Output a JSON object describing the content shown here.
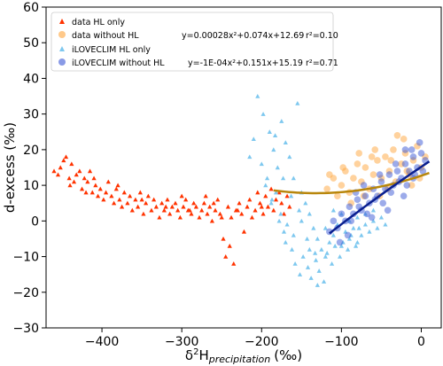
{
  "chart_data": {
    "type": "scatter",
    "xlabel_main": "δ",
    "xlabel_sup": "2",
    "xlabel_h": "H",
    "xlabel_sub": "precipitation",
    "xlabel_unit": "(‰)",
    "ylabel": "d-excess  (‰)",
    "xlim": [
      -470,
      25
    ],
    "ylim": [
      -30,
      60
    ],
    "xticks": [
      -400,
      -300,
      -200,
      -100,
      0
    ],
    "xtick_labels": [
      "−400",
      "−300",
      "−200",
      "−100",
      "0"
    ],
    "yticks": [
      -30,
      -20,
      -10,
      0,
      10,
      20,
      30,
      40,
      50,
      60
    ],
    "ytick_labels": [
      "−30",
      "−20",
      "−10",
      "0",
      "10",
      "20",
      "30",
      "40",
      "50",
      "60"
    ],
    "legend": {
      "placement": "top-center",
      "entries": [
        {
          "label": "data HL only",
          "marker": "triangle",
          "color": "#ff3300"
        },
        {
          "label": "data without HL",
          "marker": "circle",
          "color": "#ffa53c",
          "equation": "y=0.00028x²+0.074x+12.69",
          "r2": "r²=0.10"
        },
        {
          "label": "iLOVECLIM HL only",
          "marker": "triangle",
          "color": "#7ec8ef"
        },
        {
          "label": "iLOVECLIM without HL",
          "marker": "circle",
          "color": "#3a57d6",
          "equation": "y=-1E-04x²+0.151x+15.19",
          "r2": "r²=0.71"
        }
      ]
    },
    "series": [
      {
        "name": "data HL only",
        "color": "#ff3300",
        "marker": "triangle",
        "points": [
          [
            -460,
            14
          ],
          [
            -455,
            13
          ],
          [
            -452,
            15
          ],
          [
            -448,
            17
          ],
          [
            -445,
            18
          ],
          [
            -441,
            12
          ],
          [
            -438,
            16
          ],
          [
            -435,
            11
          ],
          [
            -432,
            13
          ],
          [
            -428,
            14
          ],
          [
            -425,
            9
          ],
          [
            -422,
            12
          ],
          [
            -418,
            11
          ],
          [
            -415,
            14
          ],
          [
            -412,
            8
          ],
          [
            -408,
            10
          ],
          [
            -405,
            7
          ],
          [
            -402,
            9
          ],
          [
            -398,
            6
          ],
          [
            -395,
            8
          ],
          [
            -392,
            11
          ],
          [
            -388,
            7
          ],
          [
            -385,
            5
          ],
          [
            -382,
            9
          ],
          [
            -378,
            6
          ],
          [
            -375,
            4
          ],
          [
            -372,
            8
          ],
          [
            -368,
            5
          ],
          [
            -365,
            7
          ],
          [
            -362,
            3
          ],
          [
            -358,
            6
          ],
          [
            -355,
            4
          ],
          [
            -352,
            8
          ],
          [
            -348,
            2
          ],
          [
            -345,
            5
          ],
          [
            -342,
            7
          ],
          [
            -338,
            3
          ],
          [
            -335,
            6
          ],
          [
            -332,
            4
          ],
          [
            -328,
            1
          ],
          [
            -325,
            5
          ],
          [
            -322,
            3
          ],
          [
            -318,
            6
          ],
          [
            -315,
            2
          ],
          [
            -312,
            4
          ],
          [
            -308,
            5
          ],
          [
            -305,
            3
          ],
          [
            -302,
            1
          ],
          [
            -298,
            4
          ],
          [
            -295,
            6
          ],
          [
            -292,
            3
          ],
          [
            -288,
            2
          ],
          [
            -285,
            5
          ],
          [
            -282,
            4
          ],
          [
            -278,
            1
          ],
          [
            -275,
            3
          ],
          [
            -272,
            5
          ],
          [
            -268,
            2
          ],
          [
            -265,
            4
          ],
          [
            -262,
            0
          ],
          [
            -258,
            3
          ],
          [
            -255,
            6
          ],
          [
            -252,
            2
          ],
          [
            -248,
            -5
          ],
          [
            -245,
            -10
          ],
          [
            -242,
            4
          ],
          [
            -238,
            1
          ],
          [
            -235,
            -12
          ],
          [
            -232,
            3
          ],
          [
            -228,
            5
          ],
          [
            -225,
            2
          ],
          [
            -222,
            -3
          ],
          [
            -218,
            4
          ],
          [
            -215,
            6
          ],
          [
            -212,
            1
          ],
          [
            -208,
            3
          ],
          [
            -205,
            8
          ],
          [
            -202,
            5
          ],
          [
            -198,
            2
          ],
          [
            -195,
            7
          ],
          [
            -192,
            4
          ],
          [
            -188,
            9
          ],
          [
            -185,
            3
          ],
          [
            -182,
            6
          ],
          [
            -178,
            8
          ],
          [
            -175,
            5
          ],
          [
            -172,
            2
          ],
          [
            -168,
            7
          ],
          [
            -165,
            4
          ],
          [
            -410,
            12
          ],
          [
            -380,
            10
          ],
          [
            -350,
            6
          ],
          [
            -320,
            4
          ],
          [
            -290,
            3
          ],
          [
            -260,
            5
          ],
          [
            -230,
            3
          ],
          [
            -200,
            4
          ],
          [
            -440,
            10
          ],
          [
            -420,
            8
          ],
          [
            -300,
            7
          ],
          [
            -270,
            7
          ],
          [
            -250,
            1
          ],
          [
            -240,
            -7
          ]
        ]
      },
      {
        "name": "iLOVECLIM HL only",
        "color": "#7ec8ef",
        "marker": "triangle",
        "points": [
          [
            -205,
            35
          ],
          [
            -198,
            30
          ],
          [
            -190,
            25
          ],
          [
            -185,
            20
          ],
          [
            -180,
            15
          ],
          [
            -175,
            28
          ],
          [
            -170,
            22
          ],
          [
            -165,
            18
          ],
          [
            -160,
            12
          ],
          [
            -155,
            33
          ],
          [
            -150,
            8
          ],
          [
            -145,
            5
          ],
          [
            -140,
            2
          ],
          [
            -135,
            -2
          ],
          [
            -130,
            -5
          ],
          [
            -125,
            -8
          ],
          [
            -120,
            -10
          ],
          [
            -115,
            -6
          ],
          [
            -110,
            -4
          ],
          [
            -105,
            -1
          ],
          [
            -100,
            -7
          ],
          [
            -95,
            -3
          ],
          [
            -90,
            -5
          ],
          [
            -85,
            -2
          ],
          [
            -80,
            -6
          ],
          [
            -75,
            -4
          ],
          [
            -70,
            -1
          ],
          [
            -65,
            -3
          ],
          [
            -60,
            0
          ],
          [
            -55,
            -2
          ],
          [
            -50,
            1
          ],
          [
            -45,
            -1
          ],
          [
            -195,
            10
          ],
          [
            -188,
            5
          ],
          [
            -182,
            8
          ],
          [
            -176,
            2
          ],
          [
            -172,
            -3
          ],
          [
            -168,
            -1
          ],
          [
            -162,
            -8
          ],
          [
            -158,
            -12
          ],
          [
            -152,
            -15
          ],
          [
            -148,
            -10
          ],
          [
            -142,
            -13
          ],
          [
            -138,
            -16
          ],
          [
            -132,
            -11
          ],
          [
            -128,
            -14
          ],
          [
            -122,
            -17
          ],
          [
            -118,
            -9
          ],
          [
            -112,
            -12
          ],
          [
            -108,
            -7
          ],
          [
            -102,
            -10
          ],
          [
            -98,
            -6
          ],
          [
            -92,
            -8
          ],
          [
            -88,
            -4
          ],
          [
            -82,
            -7
          ],
          [
            -78,
            -2
          ],
          [
            -200,
            16
          ],
          [
            -193,
            12
          ],
          [
            -187,
            6
          ],
          [
            -178,
            0
          ],
          [
            -170,
            -6
          ],
          [
            -160,
            -4
          ],
          [
            -150,
            0
          ],
          [
            -140,
            -8
          ],
          [
            -130,
            -18
          ],
          [
            -120,
            -2
          ],
          [
            -110,
            3
          ],
          [
            -100,
            2
          ],
          [
            -90,
            0
          ],
          [
            -80,
            1
          ],
          [
            -70,
            2
          ],
          [
            -60,
            3
          ],
          [
            -210,
            23
          ],
          [
            -215,
            18
          ],
          [
            -183,
            24
          ],
          [
            -173,
            12
          ],
          [
            -163,
            7
          ],
          [
            -153,
            3
          ],
          [
            -143,
            -5
          ],
          [
            -133,
            -9
          ]
        ]
      },
      {
        "name": "data without HL",
        "color": "#ffa53c",
        "marker": "circle",
        "points": [
          [
            -110,
            12
          ],
          [
            -100,
            10
          ],
          [
            -95,
            14
          ],
          [
            -90,
            8
          ],
          [
            -85,
            12
          ],
          [
            -80,
            16
          ],
          [
            -75,
            11
          ],
          [
            -70,
            15
          ],
          [
            -65,
            9
          ],
          [
            -60,
            13
          ],
          [
            -55,
            17
          ],
          [
            -50,
            12
          ],
          [
            -45,
            18
          ],
          [
            -40,
            14
          ],
          [
            -35,
            20
          ],
          [
            -30,
            24
          ],
          [
            -25,
            16
          ],
          [
            -20,
            19
          ],
          [
            -15,
            13
          ],
          [
            -10,
            17
          ],
          [
            -5,
            21
          ],
          [
            0,
            15
          ],
          [
            5,
            18
          ],
          [
            -105,
            7
          ],
          [
            -88,
            5
          ],
          [
            -72,
            7
          ],
          [
            -62,
            18
          ],
          [
            -52,
            7
          ],
          [
            -42,
            9
          ],
          [
            -32,
            11
          ],
          [
            -22,
            23
          ],
          [
            -12,
            10
          ],
          [
            -2,
            12
          ],
          [
            -115,
            13
          ],
          [
            -118,
            9
          ],
          [
            -98,
            15
          ],
          [
            -78,
            19
          ],
          [
            -58,
            20
          ],
          [
            -38,
            17
          ],
          [
            -18,
            14
          ]
        ]
      },
      {
        "name": "iLOVECLIM without HL",
        "color": "#3a57d6",
        "marker": "circle",
        "points": [
          [
            -115,
            -3
          ],
          [
            -110,
            0
          ],
          [
            -105,
            -2
          ],
          [
            -100,
            2
          ],
          [
            -95,
            0
          ],
          [
            -90,
            4
          ],
          [
            -85,
            2
          ],
          [
            -80,
            6
          ],
          [
            -75,
            3
          ],
          [
            -70,
            7
          ],
          [
            -65,
            5
          ],
          [
            -60,
            9
          ],
          [
            -55,
            7
          ],
          [
            -50,
            11
          ],
          [
            -45,
            9
          ],
          [
            -40,
            13
          ],
          [
            -35,
            10
          ],
          [
            -30,
            14
          ],
          [
            -25,
            12
          ],
          [
            -20,
            16
          ],
          [
            -15,
            14
          ],
          [
            -10,
            18
          ],
          [
            -5,
            15
          ],
          [
            0,
            19
          ],
          [
            5,
            17
          ],
          [
            -88,
            0
          ],
          [
            -78,
            4
          ],
          [
            -68,
            2
          ],
          [
            -58,
            6
          ],
          [
            -48,
            5
          ],
          [
            -38,
            8
          ],
          [
            -28,
            11
          ],
          [
            -18,
            10
          ],
          [
            -8,
            13
          ],
          [
            2,
            14
          ],
          [
            -72,
            10
          ],
          [
            -52,
            13
          ],
          [
            -32,
            16
          ],
          [
            -12,
            20
          ],
          [
            -2,
            22
          ],
          [
            -62,
            1
          ],
          [
            -42,
            3
          ],
          [
            -22,
            7
          ],
          [
            -82,
            8
          ],
          [
            -92,
            -4
          ],
          [
            -102,
            -6
          ],
          [
            -20,
            20
          ],
          [
            -10,
            12
          ]
        ]
      }
    ],
    "fits": [
      {
        "name": "data without HL",
        "color": "#b8860b",
        "a": 0.00028,
        "b": 0.074,
        "c": 12.69,
        "xrange": [
          -185,
          10
        ]
      },
      {
        "name": "iLOVECLIM without HL",
        "color": "#0a1f8f",
        "a": -0.0001,
        "b": 0.151,
        "c": 15.19,
        "xrange": [
          -115,
          10
        ]
      }
    ]
  }
}
